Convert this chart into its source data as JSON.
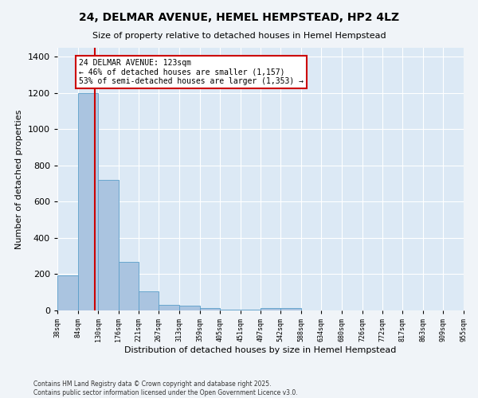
{
  "title": "24, DELMAR AVENUE, HEMEL HEMPSTEAD, HP2 4LZ",
  "subtitle": "Size of property relative to detached houses in Hemel Hempstead",
  "xlabel": "Distribution of detached houses by size in Hemel Hempstead",
  "ylabel": "Number of detached properties",
  "bin_edges": [
    38,
    84,
    130,
    176,
    221,
    267,
    313,
    359,
    405,
    451,
    497,
    542,
    588,
    634,
    680,
    726,
    772,
    817,
    863,
    909,
    955
  ],
  "bin_counts": [
    195,
    1200,
    720,
    270,
    105,
    30,
    25,
    15,
    5,
    5,
    15,
    15,
    0,
    0,
    0,
    0,
    0,
    0,
    0,
    0
  ],
  "bar_color": "#aac4e0",
  "bar_edge_color": "#5a9ec9",
  "bg_color": "#dce9f5",
  "grid_color": "#ffffff",
  "vline_x": 123,
  "vline_color": "#cc0000",
  "annotation_text": "24 DELMAR AVENUE: 123sqm\n← 46% of detached houses are smaller (1,157)\n53% of semi-detached houses are larger (1,353) →",
  "ylim": [
    0,
    1450
  ],
  "xlim": [
    38,
    955
  ],
  "yticks": [
    0,
    200,
    400,
    600,
    800,
    1000,
    1200,
    1400
  ],
  "footer_line1": "Contains HM Land Registry data © Crown copyright and database right 2025.",
  "footer_line2": "Contains public sector information licensed under the Open Government Licence v3.0."
}
